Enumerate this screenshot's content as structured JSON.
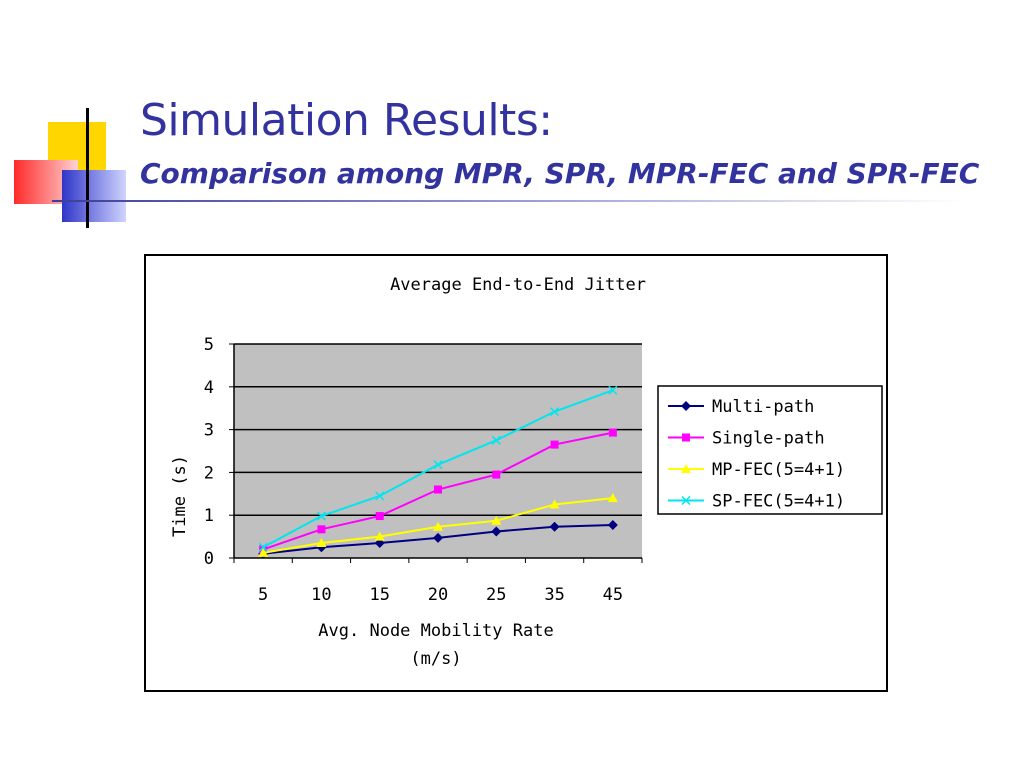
{
  "slide": {
    "title": "Simulation Results:",
    "subtitle": "Comparison among MPR, SPR, MPR-FEC and SPR-FEC",
    "title_color": "#33339f"
  },
  "chart_data": {
    "type": "line",
    "title": "Average End-to-End Jitter",
    "xlabel_lines": [
      "Avg. Node Mobility Rate",
      "(m/s)"
    ],
    "ylabel": "Time (s)",
    "categories": [
      "5",
      "10",
      "15",
      "20",
      "25",
      "35",
      "45"
    ],
    "ylim": [
      0,
      5
    ],
    "yticks": [
      "0",
      "1",
      "2",
      "3",
      "4",
      "5"
    ],
    "grid": true,
    "plot_background": "#c0c0c0",
    "legend_position": "right",
    "series": [
      {
        "name": "Multi-path",
        "color": "#000080",
        "marker": "diamond",
        "values": [
          0.1,
          0.25,
          0.35,
          0.47,
          0.62,
          0.73,
          0.77
        ]
      },
      {
        "name": "Single-path",
        "color": "#ff00ff",
        "marker": "square",
        "values": [
          0.2,
          0.67,
          0.98,
          1.6,
          1.95,
          2.65,
          2.93
        ]
      },
      {
        "name": "MP-FEC(5=4+1)",
        "color": "#ffff00",
        "marker": "triangle",
        "values": [
          0.12,
          0.35,
          0.5,
          0.73,
          0.87,
          1.25,
          1.4
        ]
      },
      {
        "name": "SP-FEC(5=4+1)",
        "color": "#00e5ee",
        "marker": "x",
        "values": [
          0.25,
          0.98,
          1.45,
          2.18,
          2.75,
          3.42,
          3.92
        ]
      }
    ]
  }
}
